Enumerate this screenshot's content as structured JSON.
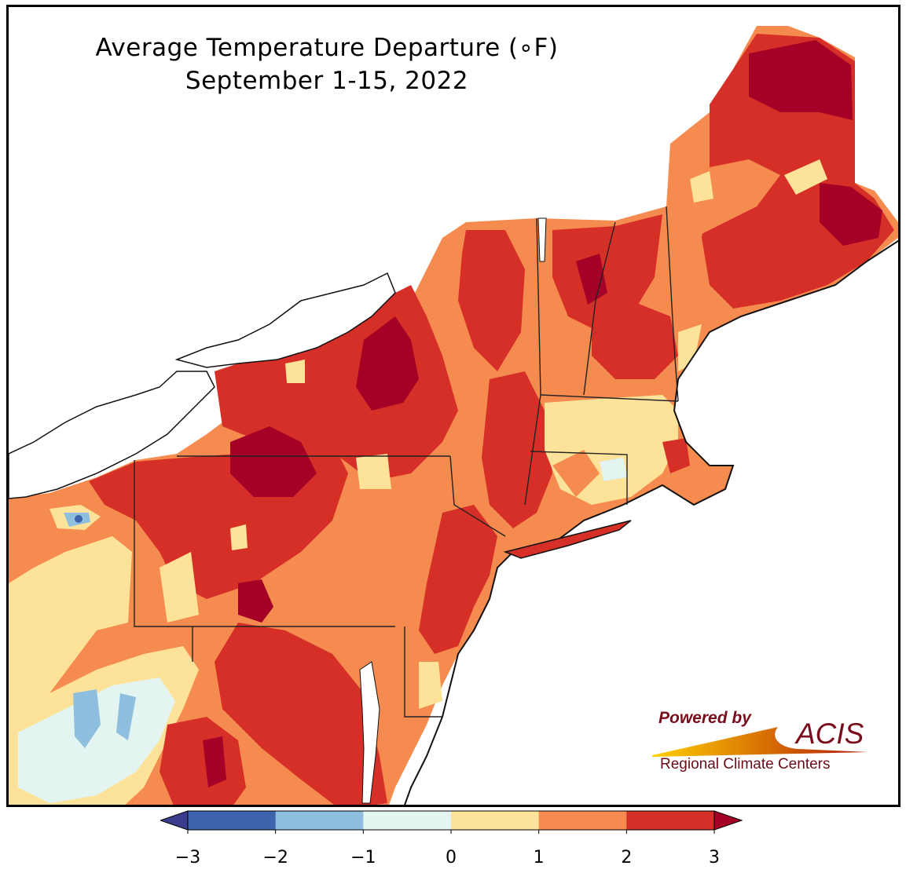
{
  "title": {
    "line1": "Average Temperature Departure ($^\\circ$F)",
    "line1_display": "Average Temperature Departure (∘F)",
    "line2": "September 1-15, 2022"
  },
  "logo": {
    "powered": "Powered by",
    "name": "ACIS",
    "subtitle": "Regional Climate Centers",
    "colors": {
      "text": "#7a0d1c",
      "swoosh_start": "#ffd000",
      "swoosh_end": "#b3170a"
    }
  },
  "colorbar": {
    "extend": "both",
    "ticks": [
      "−3",
      "−2",
      "−1",
      "0",
      "1",
      "2",
      "3"
    ],
    "bins": [
      {
        "range": [
          -3,
          -2
        ],
        "color": "#3f62ad"
      },
      {
        "range": [
          -2,
          -1
        ],
        "color": "#8fbfdf"
      },
      {
        "range": [
          -1,
          0
        ],
        "color": "#e4f4f0"
      },
      {
        "range": [
          0,
          1
        ],
        "color": "#fde39a"
      },
      {
        "range": [
          1,
          2
        ],
        "color": "#f68b4f"
      },
      {
        "range": [
          2,
          3
        ],
        "color": "#d62f27"
      }
    ],
    "under_color": "#3c3c8f",
    "over_color": "#a50026"
  },
  "map": {
    "region": "Northeast United States",
    "colors": {
      "above_3": "#a50026",
      "2_to_3": "#d62f27",
      "1_to_2": "#f68b4f",
      "0_to_1": "#fde39a",
      "minus1_to_0": "#e4f4f0",
      "minus2_to_minus1": "#8fbfdf",
      "minus3_to_minus2": "#3f62ad",
      "water": "#ffffff",
      "state_border": "#222222",
      "county_border": "#9a9a9a"
    }
  }
}
